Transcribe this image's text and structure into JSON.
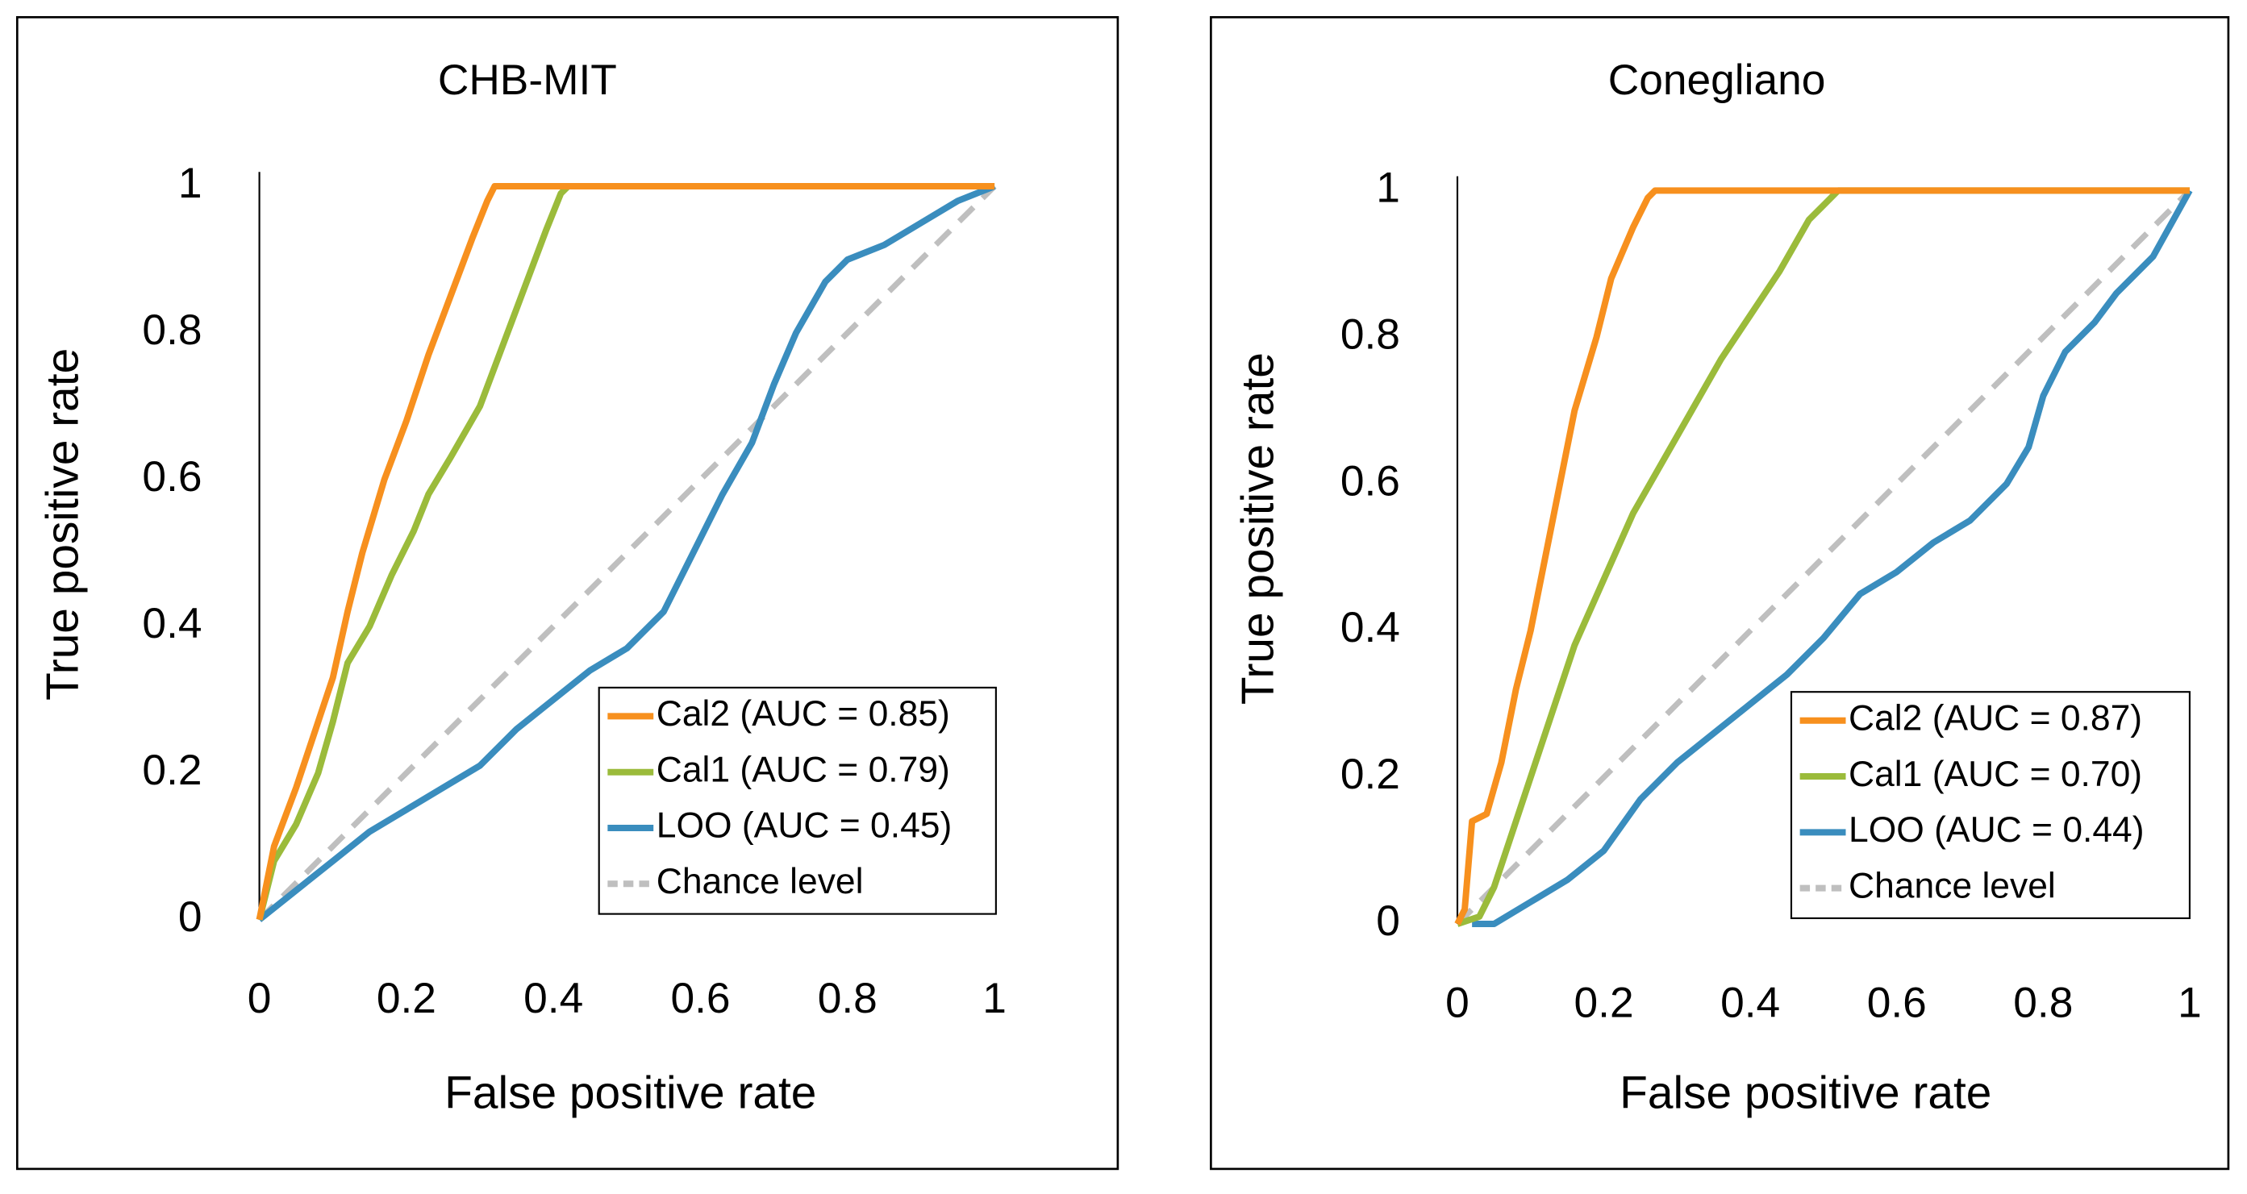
{
  "chart_data": [
    {
      "type": "line",
      "title": "CHB-MIT",
      "xlabel": "False positive rate",
      "ylabel": "True positive rate",
      "xlim": [
        0,
        1
      ],
      "ylim": [
        0,
        1
      ],
      "xticks": [
        0,
        0.2,
        0.4,
        0.6,
        0.8,
        1
      ],
      "yticks": [
        0,
        0.2,
        0.4,
        0.6,
        0.8,
        1
      ],
      "legend": "lower right",
      "series": [
        {
          "name": "Cal2 (AUC = 0.85)",
          "color": "#f7901e",
          "style": "solid",
          "x": [
            0,
            0.02,
            0.05,
            0.08,
            0.1,
            0.12,
            0.14,
            0.17,
            0.2,
            0.23,
            0.26,
            0.29,
            0.31,
            0.32,
            1
          ],
          "values": [
            0,
            0.1,
            0.18,
            0.27,
            0.33,
            0.42,
            0.5,
            0.6,
            0.68,
            0.77,
            0.85,
            0.93,
            0.98,
            1,
            1
          ]
        },
        {
          "name": "Cal1 (AUC = 0.79)",
          "color": "#9bbb3b",
          "style": "solid",
          "x": [
            0,
            0.02,
            0.05,
            0.08,
            0.1,
            0.12,
            0.15,
            0.18,
            0.21,
            0.23,
            0.26,
            0.3,
            0.33,
            0.36,
            0.39,
            0.41,
            0.42,
            1
          ],
          "values": [
            0,
            0.08,
            0.13,
            0.2,
            0.27,
            0.35,
            0.4,
            0.47,
            0.53,
            0.58,
            0.63,
            0.7,
            0.78,
            0.86,
            0.94,
            0.99,
            1,
            1
          ]
        },
        {
          "name": "LOO (AUC = 0.45)",
          "color": "#3a8dbe",
          "style": "solid",
          "x": [
            0,
            0.05,
            0.1,
            0.15,
            0.2,
            0.25,
            0.3,
            0.35,
            0.4,
            0.45,
            0.5,
            0.55,
            0.6,
            0.63,
            0.67,
            0.7,
            0.73,
            0.77,
            0.8,
            0.85,
            0.9,
            0.95,
            1
          ],
          "values": [
            0,
            0.04,
            0.08,
            0.12,
            0.15,
            0.18,
            0.21,
            0.26,
            0.3,
            0.34,
            0.37,
            0.42,
            0.52,
            0.58,
            0.65,
            0.73,
            0.8,
            0.87,
            0.9,
            0.92,
            0.95,
            0.98,
            1
          ]
        },
        {
          "name": "Chance level",
          "color": "#bfbfbf",
          "style": "dashed",
          "x": [
            0,
            1
          ],
          "values": [
            0,
            1
          ]
        }
      ]
    },
    {
      "type": "line",
      "title": "Conegliano",
      "xlabel": "False positive rate",
      "ylabel": "True positive rate",
      "xlim": [
        0,
        1
      ],
      "ylim": [
        0,
        1
      ],
      "xticks": [
        0,
        0.2,
        0.4,
        0.6,
        0.8,
        1
      ],
      "yticks": [
        0,
        0.2,
        0.4,
        0.6,
        0.8,
        1
      ],
      "legend": "lower right",
      "series": [
        {
          "name": "Cal2 (AUC = 0.87)",
          "color": "#f7901e",
          "style": "solid",
          "x": [
            0,
            0.01,
            0.02,
            0.04,
            0.06,
            0.08,
            0.1,
            0.12,
            0.14,
            0.16,
            0.19,
            0.21,
            0.24,
            0.26,
            0.27,
            1
          ],
          "values": [
            0,
            0.02,
            0.14,
            0.15,
            0.22,
            0.32,
            0.4,
            0.5,
            0.6,
            0.7,
            0.8,
            0.88,
            0.95,
            0.99,
            1,
            1
          ]
        },
        {
          "name": "Cal1 (AUC = 0.70)",
          "color": "#9bbb3b",
          "style": "solid",
          "x": [
            0,
            0.03,
            0.05,
            0.07,
            0.1,
            0.13,
            0.16,
            0.2,
            0.24,
            0.28,
            0.32,
            0.36,
            0.4,
            0.44,
            0.48,
            0.5,
            0.52,
            1
          ],
          "values": [
            0,
            0.01,
            0.05,
            0.11,
            0.2,
            0.29,
            0.38,
            0.47,
            0.56,
            0.63,
            0.7,
            0.77,
            0.83,
            0.89,
            0.96,
            0.98,
            1,
            1
          ]
        },
        {
          "name": "LOO (AUC = 0.44)",
          "color": "#3a8dbe",
          "style": "solid",
          "x": [
            0.02,
            0.05,
            0.1,
            0.15,
            0.2,
            0.25,
            0.3,
            0.35,
            0.4,
            0.45,
            0.5,
            0.55,
            0.6,
            0.65,
            0.7,
            0.75,
            0.78,
            0.8,
            0.83,
            0.87,
            0.9,
            0.95,
            1
          ],
          "values": [
            0,
            0,
            0.03,
            0.06,
            0.1,
            0.17,
            0.22,
            0.26,
            0.3,
            0.34,
            0.39,
            0.45,
            0.48,
            0.52,
            0.55,
            0.6,
            0.65,
            0.72,
            0.78,
            0.82,
            0.86,
            0.91,
            1
          ]
        },
        {
          "name": "Chance level",
          "color": "#bfbfbf",
          "style": "dashed",
          "x": [
            0,
            1
          ],
          "values": [
            0,
            1
          ]
        }
      ]
    }
  ]
}
